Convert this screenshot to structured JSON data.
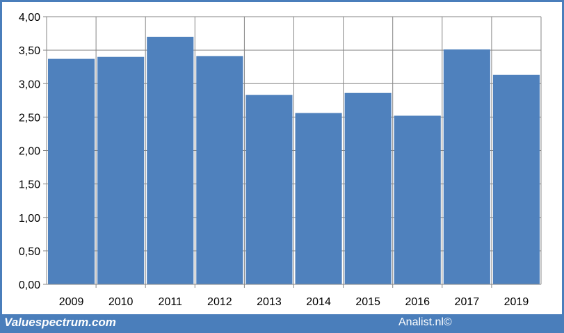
{
  "chart_data": {
    "type": "bar",
    "categories": [
      "2009",
      "2010",
      "2011",
      "2012",
      "2013",
      "2014",
      "2015",
      "2016",
      "2017",
      "2019"
    ],
    "values": [
      3.37,
      3.4,
      3.7,
      3.41,
      2.83,
      2.56,
      2.86,
      2.52,
      3.51,
      3.13
    ],
    "ylim": [
      0,
      4.0
    ],
    "yticks": [
      "0,00",
      "0,50",
      "1,00",
      "1,50",
      "2,00",
      "2,50",
      "3,00",
      "3,50",
      "4,00"
    ],
    "title": "",
    "xlabel": "",
    "ylabel": "",
    "grid": true,
    "bar_color": "#4f81bd",
    "grid_color": "#868686"
  },
  "footer": {
    "brand": "Valuespectrum.com",
    "credit": "Analist.nl©",
    "color": "#4a7ebb"
  }
}
